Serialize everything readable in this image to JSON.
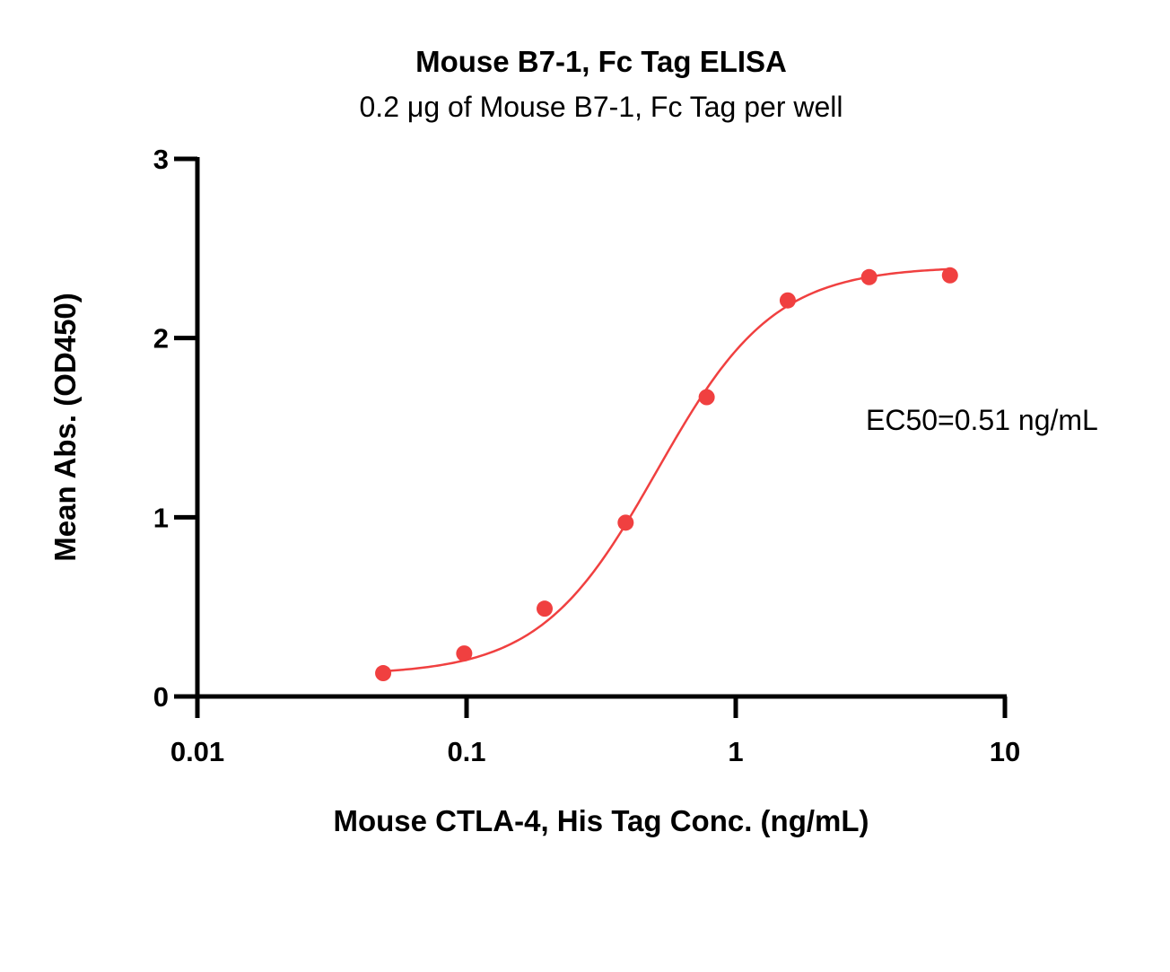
{
  "chart_data": {
    "type": "scatter",
    "title": "Mouse B7-1, Fc Tag ELISA",
    "subtitle": "0.2 μg of Mouse B7-1, Fc Tag per well",
    "xlabel": "Mouse CTLA-4, His Tag Conc. (ng/mL)",
    "ylabel": "Mean Abs. (OD450)",
    "x_scale": "log",
    "xlim": [
      0.01,
      10
    ],
    "ylim": [
      0,
      3
    ],
    "x_ticks": [
      0.01,
      0.1,
      1,
      10
    ],
    "x_tick_labels": [
      "0.01",
      "0.1",
      "1",
      "10"
    ],
    "y_ticks": [
      0,
      1,
      2,
      3
    ],
    "y_tick_labels": [
      "0",
      "1",
      "2",
      "3"
    ],
    "grid": false,
    "color": "#f04040",
    "series": [
      {
        "x": [
          0.049,
          0.098,
          0.195,
          0.39,
          0.78,
          1.56,
          3.13,
          6.25
        ],
        "y": [
          0.13,
          0.24,
          0.49,
          0.97,
          1.67,
          2.21,
          2.34,
          2.35
        ]
      }
    ],
    "fit": {
      "model": "4PL",
      "bottom": 0.12,
      "top": 2.4,
      "ec50": 0.51,
      "hill": 2.0
    },
    "annotation": "EC50=0.51 ng/mL"
  }
}
